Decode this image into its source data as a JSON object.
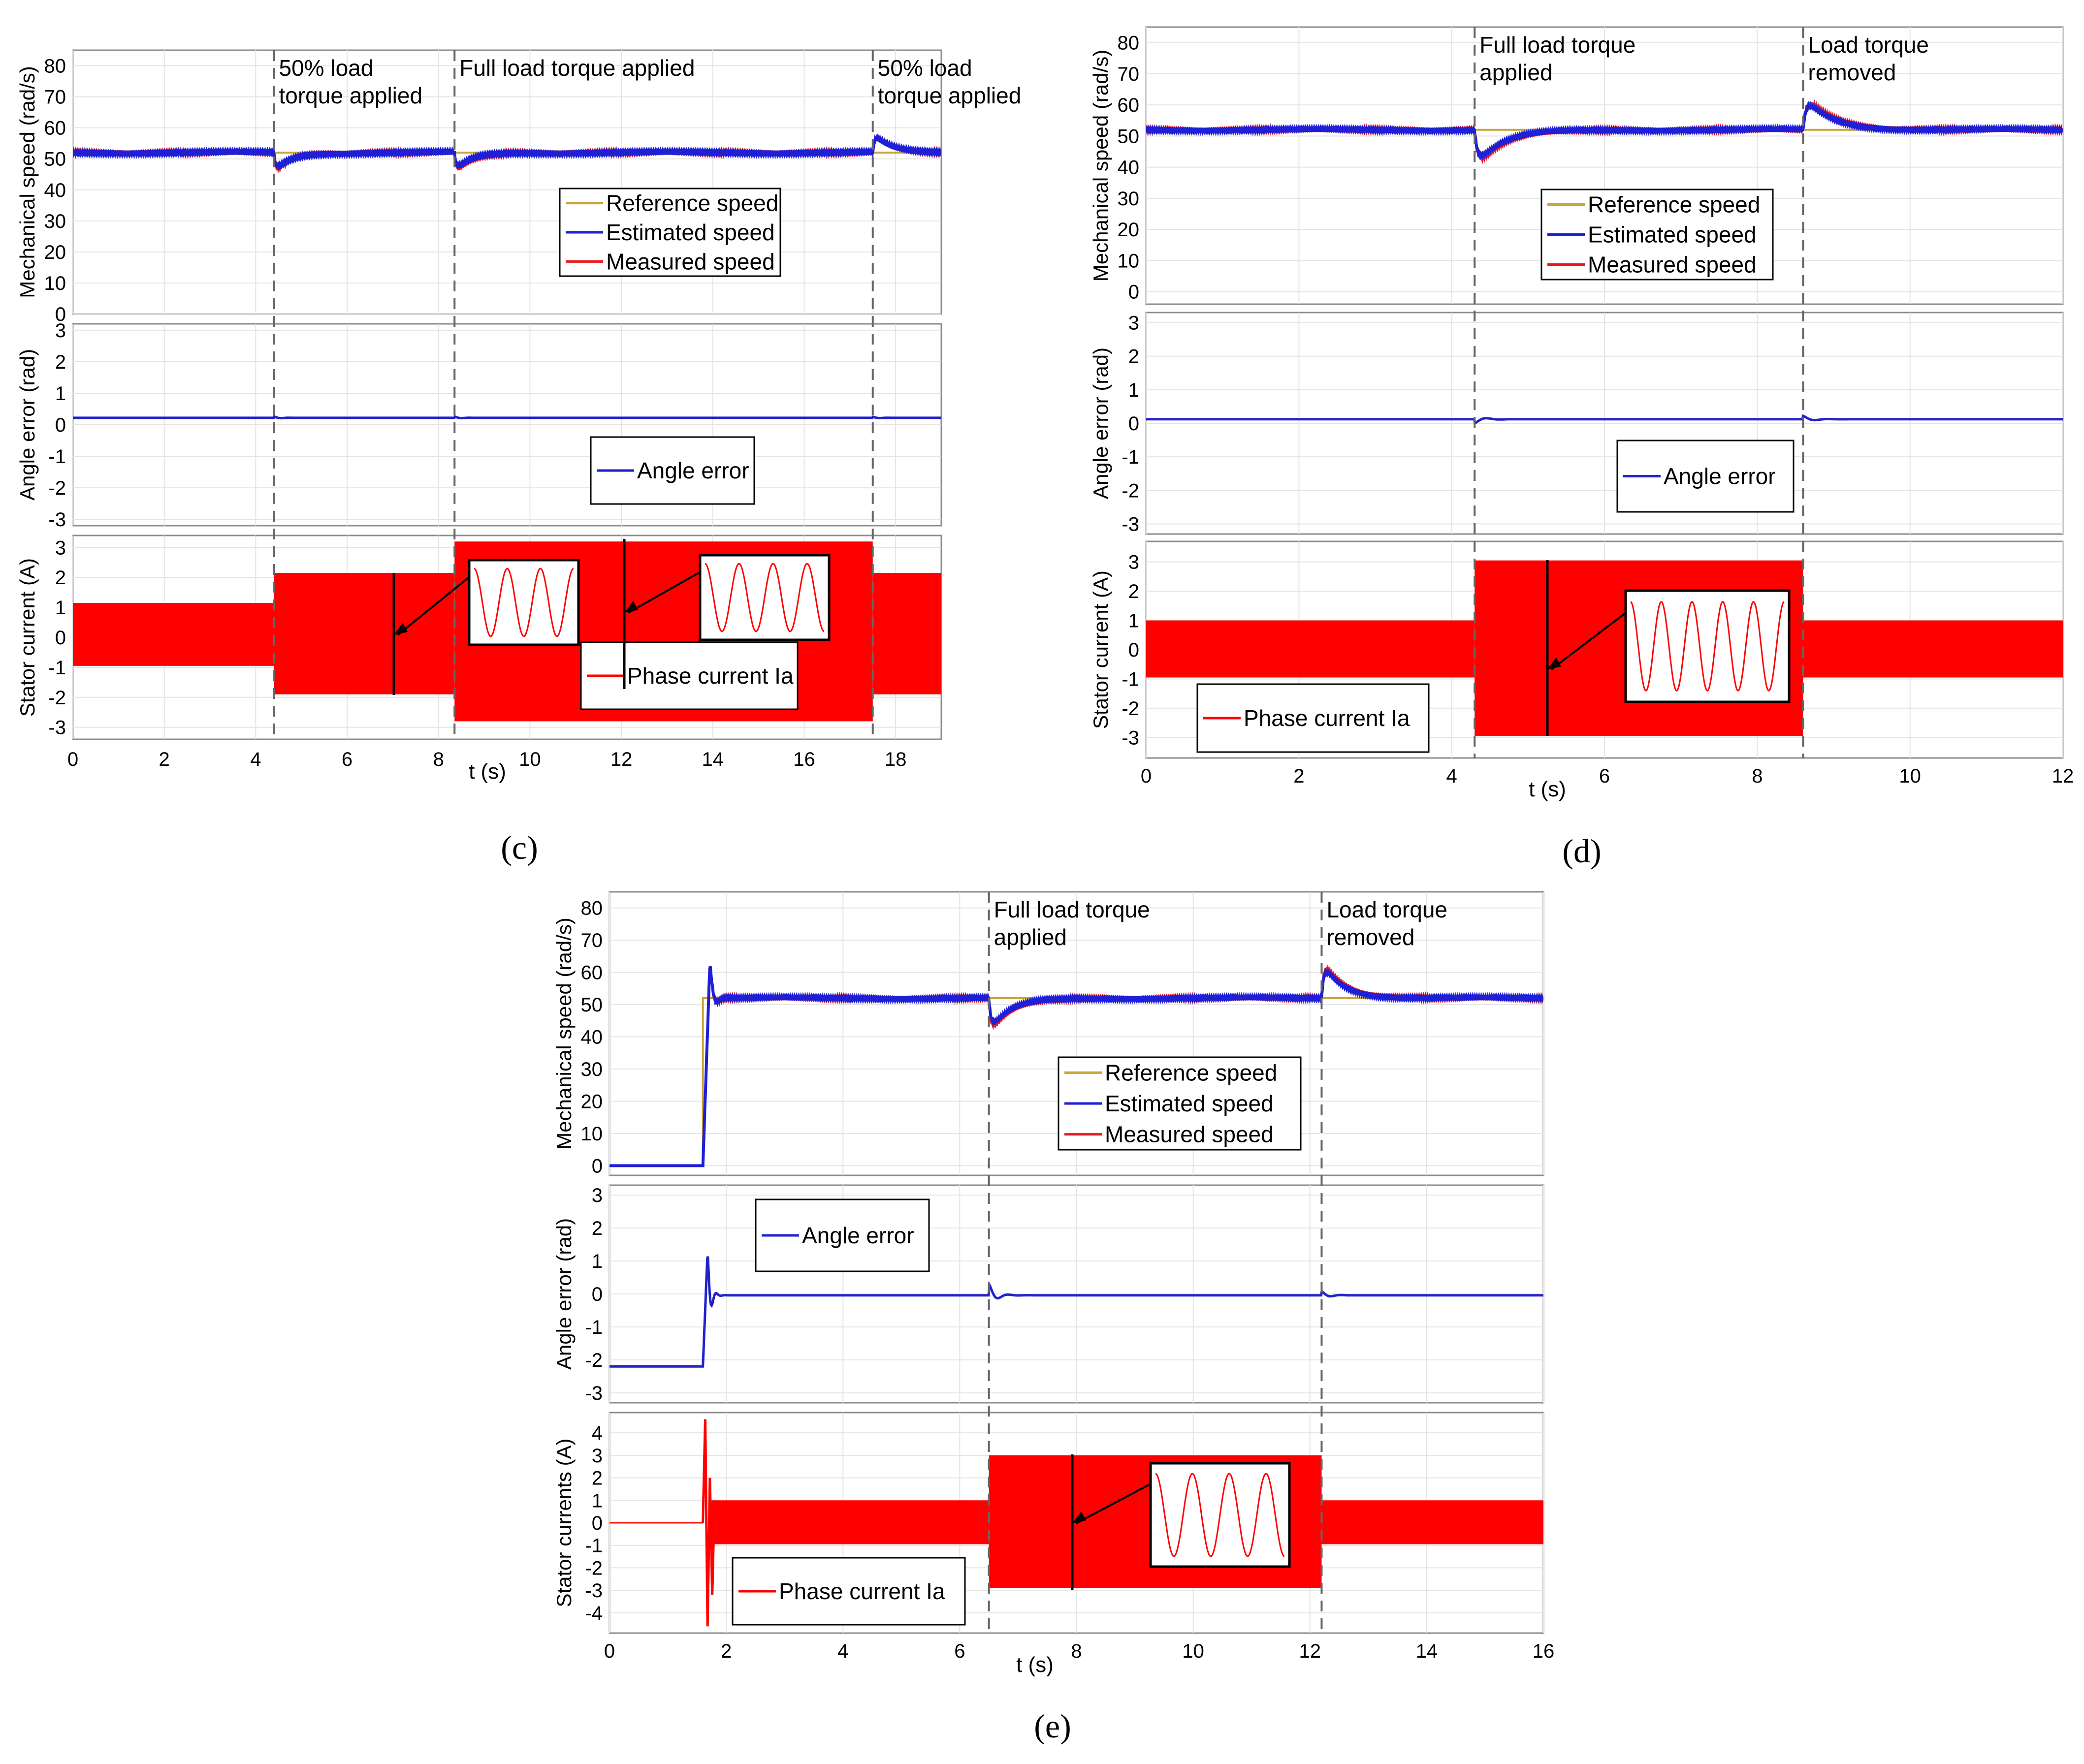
{
  "colors": {
    "reference": "#c8a43c",
    "estimated": "#1f1fd6",
    "measured": "#e8191e",
    "angle": "#2222cc",
    "current": "#ff0000"
  },
  "figures": [
    {
      "id": "c",
      "caption": "(c)",
      "xlabel": "t (s)",
      "xlim": [
        0,
        19
      ],
      "xticks": [
        0,
        2,
        4,
        6,
        8,
        10,
        12,
        14,
        16,
        18
      ],
      "events": [
        4.4,
        8.35,
        17.5
      ],
      "annotations": [
        {
          "t": 4.4,
          "lines": [
            "50% load",
            "torque applied"
          ]
        },
        {
          "t": 8.35,
          "lines": [
            "Full load torque applied"
          ]
        },
        {
          "t": 17.5,
          "lines": [
            "50% load",
            "torque applied"
          ]
        }
      ],
      "speed": {
        "ylabel": "Mechanical speed (rad/s)",
        "ylim": [
          0,
          85
        ],
        "yticks": [
          0,
          10,
          20,
          30,
          40,
          50,
          60,
          70,
          80
        ],
        "legend": [
          "Reference speed",
          "Estimated speed",
          "Measured speed"
        ],
        "start_time": 0,
        "initial": 52,
        "ref_initial": 52,
        "ref_final": 52,
        "final": 52,
        "overshoot": 0,
        "settle": 52,
        "disturbances": [
          {
            "t": 4.4,
            "d": -7
          },
          {
            "t": 8.35,
            "d": -7
          },
          {
            "t": 17.5,
            "d": 7
          }
        ]
      },
      "angle": {
        "ylabel": "Angle error (rad)",
        "ylim": [
          -3.2,
          3.2
        ],
        "yticks": [
          -3,
          -2,
          -1,
          0,
          1,
          2,
          3
        ],
        "legend": [
          "Angle error"
        ],
        "start_time": 0,
        "initial": 0.2,
        "final": 0.22,
        "spike": 0,
        "disturbances": [
          {
            "t": 4.4,
            "d": 0.04
          },
          {
            "t": 8.35,
            "d": 0.04
          },
          {
            "t": 17.5,
            "d": 0.03
          }
        ]
      },
      "current": {
        "ylabel": "Stator current (A)",
        "ylim": [
          -3.4,
          3.4
        ],
        "yticks": [
          -3,
          -2,
          -1,
          0,
          1,
          2,
          3
        ],
        "legend": [
          "Phase current Ia"
        ],
        "start_time": 0,
        "startup_spike": 0,
        "segments": [
          {
            "from": 0,
            "to": 4.4,
            "upper": 1.15,
            "lower": -0.95
          },
          {
            "from": 4.4,
            "to": 8.35,
            "upper": 2.15,
            "lower": -1.9
          },
          {
            "from": 8.35,
            "to": 17.5,
            "upper": 3.2,
            "lower": -2.8
          },
          {
            "from": 17.5,
            "to": 19,
            "upper": 2.15,
            "lower": -1.9
          }
        ]
      }
    },
    {
      "id": "d",
      "caption": "(d)",
      "xlabel": "t (s)",
      "xlim": [
        0,
        12
      ],
      "xticks": [
        0,
        2,
        4,
        6,
        8,
        10,
        12
      ],
      "events": [
        4.3,
        8.6
      ],
      "annotations": [
        {
          "t": 4.3,
          "lines": [
            "Full load torque",
            "applied"
          ]
        },
        {
          "t": 8.6,
          "lines": [
            "Load torque",
            "removed"
          ]
        }
      ],
      "speed": {
        "ylabel": "Mechanical speed (rad/s)",
        "ylim": [
          -4,
          85
        ],
        "yticks": [
          0,
          10,
          20,
          30,
          40,
          50,
          60,
          70,
          80
        ],
        "legend": [
          "Reference speed",
          "Estimated speed",
          "Measured speed"
        ],
        "start_time": 0,
        "initial": 52,
        "ref_initial": 52,
        "ref_final": 52,
        "final": 52,
        "overshoot": 0,
        "settle": 52,
        "disturbances": [
          {
            "t": 4.3,
            "d": -13
          },
          {
            "t": 8.6,
            "d": 12
          }
        ]
      },
      "angle": {
        "ylabel": "Angle error (rad)",
        "ylim": [
          -3.3,
          3.3
        ],
        "yticks": [
          -3,
          -2,
          -1,
          0,
          1,
          2,
          3
        ],
        "legend": [
          "Angle error"
        ],
        "start_time": 0,
        "initial": 0.1,
        "final": 0.12,
        "spike": 0,
        "disturbances": [
          {
            "t": 4.3,
            "d": -0.12
          },
          {
            "t": 8.6,
            "d": 0.1
          }
        ]
      },
      "current": {
        "ylabel": "Stator current   (A)",
        "ylim": [
          -3.7,
          3.7
        ],
        "yticks": [
          -3,
          -2,
          -1,
          0,
          1,
          2,
          3
        ],
        "legend": [
          "Phase current Ia"
        ],
        "start_time": 0,
        "startup_spike": 0,
        "segments": [
          {
            "from": 0,
            "to": 4.3,
            "upper": 1.0,
            "lower": -0.95
          },
          {
            "from": 4.3,
            "to": 8.6,
            "upper": 3.05,
            "lower": -2.95
          },
          {
            "from": 8.6,
            "to": 12,
            "upper": 1.0,
            "lower": -0.95
          }
        ]
      }
    },
    {
      "id": "e",
      "caption": "(e)",
      "xlabel": "t (s)",
      "xlim": [
        0,
        16
      ],
      "xticks": [
        0,
        2,
        4,
        6,
        8,
        10,
        12,
        14,
        16
      ],
      "events": [
        6.5,
        12.2
      ],
      "annotations": [
        {
          "t": 6.5,
          "lines": [
            "Full load torque",
            "applied"
          ]
        },
        {
          "t": 12.2,
          "lines": [
            "Load torque",
            "removed"
          ]
        }
      ],
      "speed": {
        "ylabel": "Mechanical speed (rad/s)",
        "ylim": [
          -3,
          85
        ],
        "yticks": [
          0,
          10,
          20,
          30,
          40,
          50,
          60,
          70,
          80
        ],
        "legend": [
          "Reference speed",
          "Estimated speed",
          "Measured speed"
        ],
        "start_time": 1.6,
        "initial": 0,
        "ref_initial": 0,
        "ref_final": 52,
        "final": 52,
        "overshoot": 63,
        "settle": 51,
        "disturbances": [
          {
            "t": 6.5,
            "d": -12
          },
          {
            "t": 12.2,
            "d": 13
          }
        ]
      },
      "angle": {
        "ylabel": "Angle error (rad)",
        "ylim": [
          -3.3,
          3.3
        ],
        "yticks": [
          -3,
          -2,
          -1,
          0,
          1,
          2,
          3
        ],
        "legend": [
          "Angle error"
        ],
        "start_time": 1.6,
        "initial": -2.2,
        "final": -0.04,
        "spike": 1.3,
        "disturbances": [
          {
            "t": 6.5,
            "d": 0.35
          },
          {
            "t": 12.2,
            "d": 0.12
          }
        ]
      },
      "current": {
        "ylabel": "Stator currents (A)",
        "ylim": [
          -4.9,
          4.9
        ],
        "yticks": [
          -4,
          -3,
          -2,
          -1,
          0,
          1,
          2,
          3,
          4
        ],
        "legend": [
          "Phase current Ia"
        ],
        "start_time": 1.6,
        "startup_spike": 4.6,
        "segments": [
          {
            "from": 0,
            "to": 1.6,
            "upper": 0.03,
            "lower": -0.03
          },
          {
            "from": 1.75,
            "to": 6.5,
            "upper": 1.0,
            "lower": -0.95
          },
          {
            "from": 6.5,
            "to": 12.2,
            "upper": 3.0,
            "lower": -2.9
          },
          {
            "from": 12.2,
            "to": 16,
            "upper": 1.0,
            "lower": -0.95
          }
        ]
      }
    }
  ]
}
